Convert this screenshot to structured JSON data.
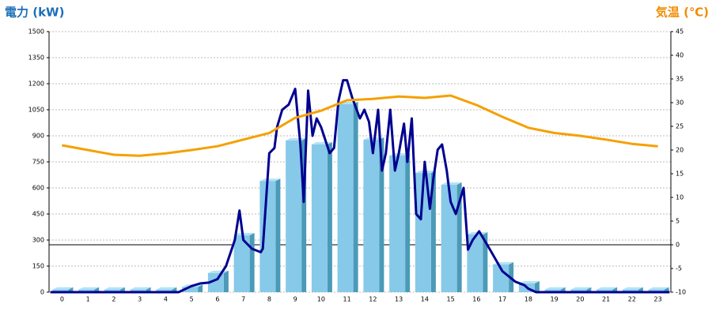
{
  "chart_data": {
    "type": "bar",
    "y_title": "電力 (kW)",
    "y2_title": "気温 (℃)",
    "categories": [
      "0",
      "1",
      "2",
      "3",
      "4",
      "5",
      "6",
      "7",
      "8",
      "9",
      "10",
      "11",
      "12",
      "13",
      "14",
      "15",
      "16",
      "17",
      "18",
      "19",
      "20",
      "21",
      "22",
      "23"
    ],
    "ylim": [
      0,
      1500
    ],
    "yticks": [
      0,
      150,
      300,
      450,
      600,
      750,
      900,
      1050,
      1200,
      1350,
      1500
    ],
    "y2lim": [
      -10,
      45
    ],
    "y2ticks": [
      -10,
      -5,
      0,
      5,
      10,
      15,
      20,
      25,
      30,
      35,
      40,
      45
    ],
    "grid": true,
    "series": [
      {
        "type": "bar",
        "color": "#87c9e8",
        "values": [
          15,
          15,
          15,
          15,
          15,
          30,
          110,
          327,
          640,
          873,
          850,
          1082,
          877,
          786,
          686,
          618,
          332,
          159,
          50,
          15,
          15,
          15,
          15,
          15
        ]
      },
      {
        "type": "line",
        "color": "#000090",
        "x": [
          -0.45,
          4.5,
          5,
          5.33,
          5.67,
          6,
          6.33,
          6.67,
          6.85,
          7,
          7.33,
          7.67,
          7.75,
          8,
          8.2,
          8.3,
          8.5,
          8.75,
          9,
          9.2,
          9.33,
          9.5,
          9.67,
          9.83,
          10,
          10.33,
          10.5,
          10.67,
          10.85,
          11,
          11.2,
          11.5,
          11.67,
          11.85,
          12,
          12.2,
          12.35,
          12.5,
          12.67,
          12.85,
          13,
          13.2,
          13.33,
          13.5,
          13.67,
          13.85,
          14,
          14.2,
          14.33,
          14.5,
          14.67,
          14.85,
          15,
          15.2,
          15.5,
          15.67,
          15.85,
          16.1,
          16.5,
          17,
          17.5,
          17.85,
          18,
          18.3,
          23.45
        ],
        "values": [
          0,
          0,
          35,
          50,
          55,
          75,
          150,
          300,
          470,
          300,
          250,
          230,
          250,
          800,
          830,
          950,
          1050,
          1080,
          1170,
          850,
          520,
          1160,
          900,
          1000,
          950,
          800,
          830,
          1100,
          1220,
          1220,
          1120,
          1000,
          1050,
          980,
          800,
          1050,
          700,
          800,
          1050,
          700,
          800,
          970,
          750,
          1000,
          450,
          420,
          750,
          480,
          650,
          820,
          850,
          700,
          520,
          450,
          600,
          245,
          300,
          350,
          250,
          120,
          60,
          40,
          20,
          0,
          0
        ]
      },
      {
        "type": "line",
        "axis": "y2",
        "color": "#f5a000",
        "values": [
          21,
          20,
          19,
          18.8,
          19.3,
          20,
          20.8,
          22.2,
          23.6,
          26.8,
          28.3,
          30.5,
          30.8,
          31.3,
          31,
          31.5,
          29.5,
          27,
          24.7,
          23.6,
          23,
          22.2,
          21.3,
          20.8
        ]
      }
    ]
  }
}
